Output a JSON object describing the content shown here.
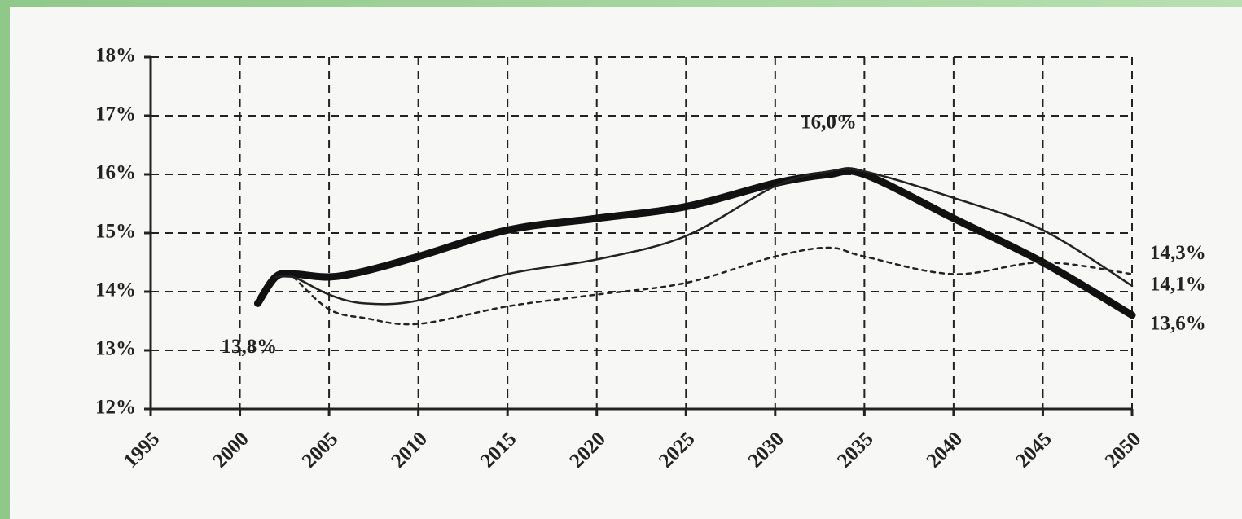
{
  "chart_data": {
    "type": "line",
    "x": [
      2001,
      2002,
      2003,
      2005,
      2007,
      2010,
      2015,
      2020,
      2025,
      2030,
      2033,
      2035,
      2040,
      2045,
      2050
    ],
    "series": [
      {
        "color": "#111111",
        "style": "thick",
        "values": [
          13.8,
          14.25,
          14.3,
          14.25,
          14.35,
          14.6,
          15.05,
          15.25,
          15.45,
          15.85,
          16.0,
          16.0,
          15.25,
          14.5,
          13.6
        ],
        "value_labels": [
          "13,8%",
          null,
          null,
          null,
          null,
          null,
          null,
          null,
          null,
          null,
          "16,0%",
          null,
          null,
          null,
          "13,6%"
        ]
      },
      {
        "color": "#222222",
        "style": "thin",
        "values": [
          null,
          14.25,
          14.25,
          13.95,
          13.8,
          13.85,
          14.3,
          14.55,
          14.95,
          15.8,
          16.05,
          16.05,
          15.6,
          15.05,
          14.1
        ],
        "value_labels": [
          null,
          null,
          null,
          null,
          null,
          null,
          null,
          null,
          null,
          null,
          null,
          null,
          null,
          null,
          "14,1%"
        ]
      },
      {
        "color": "#222222",
        "style": "dotted",
        "values": [
          null,
          null,
          14.25,
          13.7,
          13.55,
          13.45,
          13.75,
          13.95,
          14.15,
          14.6,
          14.75,
          14.6,
          14.3,
          14.5,
          14.3
        ],
        "value_labels": [
          null,
          null,
          null,
          null,
          null,
          null,
          null,
          null,
          null,
          null,
          null,
          null,
          null,
          null,
          "14,3%"
        ]
      }
    ],
    "xlim": [
      1995,
      2050
    ],
    "xticks": [
      1995,
      2000,
      2005,
      2010,
      2015,
      2020,
      2025,
      2030,
      2035,
      2040,
      2045,
      2050
    ],
    "ylim": [
      12,
      18
    ],
    "yticks": [
      {
        "value": 12,
        "label": "12%"
      },
      {
        "value": 13,
        "label": "13%"
      },
      {
        "value": 14,
        "label": "14%"
      },
      {
        "value": 15,
        "label": "15%"
      },
      {
        "value": 16,
        "label": "16%"
      },
      {
        "value": 17,
        "label": "17%"
      },
      {
        "value": 18,
        "label": "18%"
      }
    ],
    "grid": true
  }
}
